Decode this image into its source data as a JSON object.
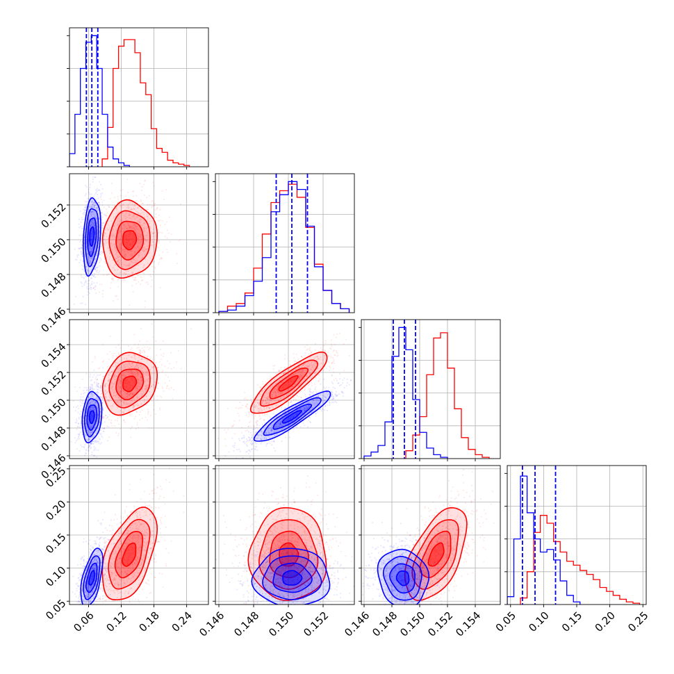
{
  "chart_data": {
    "type": "corner",
    "grid": true,
    "legend": "none",
    "colors": {
      "series_a": "#0000ff",
      "series_b": "#ff0000",
      "grid": "#b0b0b0",
      "frame": "#000000"
    },
    "axes": [
      {
        "range": [
          0.025,
          0.28
        ],
        "ticks": [
          0.06,
          0.12,
          0.18,
          0.24
        ],
        "tick_labels": [
          "0.06",
          "0.12",
          "0.18",
          "0.24"
        ],
        "quantiles_a": [
          0.056,
          0.066,
          0.077
        ]
      },
      {
        "range": [
          0.1458,
          0.1538
        ],
        "ticks": [
          0.146,
          0.148,
          0.15,
          0.152
        ],
        "tick_labels": [
          "0.146",
          "0.148",
          "0.150",
          "0.152"
        ],
        "quantiles_a": [
          0.1493,
          0.1502,
          0.1511
        ]
      },
      {
        "range": [
          0.1458,
          0.1558
        ],
        "ticks": [
          0.146,
          0.148,
          0.15,
          0.152,
          0.154
        ],
        "tick_labels": [
          "0.146",
          "0.148",
          "0.150",
          "0.152",
          "0.154"
        ],
        "quantiles_a": [
          0.1481,
          0.1489,
          0.1497
        ]
      },
      {
        "range": [
          0.045,
          0.255
        ],
        "ticks": [
          0.05,
          0.1,
          0.15,
          0.2,
          0.25
        ],
        "tick_labels": [
          "0.05",
          "0.10",
          "0.15",
          "0.20",
          "0.25"
        ],
        "quantiles_a": [
          0.068,
          0.087,
          0.118
        ]
      }
    ],
    "marginals": [
      {
        "a": [
          [
            0.025,
            0.035,
            0.1
          ],
          [
            0.035,
            0.045,
            0.4
          ],
          [
            0.045,
            0.055,
            0.75
          ],
          [
            0.055,
            0.065,
            0.95
          ],
          [
            0.065,
            0.075,
            1.0
          ],
          [
            0.075,
            0.085,
            0.75
          ],
          [
            0.085,
            0.095,
            0.4
          ],
          [
            0.095,
            0.105,
            0.15
          ],
          [
            0.105,
            0.115,
            0.06
          ],
          [
            0.115,
            0.125,
            0.03
          ],
          [
            0.125,
            0.135,
            0.01
          ]
        ],
        "b": [
          [
            0.085,
            0.095,
            0.06
          ],
          [
            0.095,
            0.105,
            0.3
          ],
          [
            0.105,
            0.115,
            0.75
          ],
          [
            0.115,
            0.125,
            0.92
          ],
          [
            0.125,
            0.135,
            0.97
          ],
          [
            0.135,
            0.145,
            0.97
          ],
          [
            0.145,
            0.155,
            0.87
          ],
          [
            0.155,
            0.165,
            0.64
          ],
          [
            0.165,
            0.175,
            0.55
          ],
          [
            0.175,
            0.185,
            0.29
          ],
          [
            0.185,
            0.195,
            0.14
          ],
          [
            0.195,
            0.205,
            0.11
          ],
          [
            0.205,
            0.215,
            0.05
          ],
          [
            0.215,
            0.225,
            0.03
          ],
          [
            0.225,
            0.235,
            0.02
          ],
          [
            0.235,
            0.245,
            0.01
          ]
        ]
      },
      {
        "a": [
          [
            0.146,
            0.1465,
            0.01
          ],
          [
            0.1465,
            0.147,
            0.02
          ],
          [
            0.147,
            0.1475,
            0.05
          ],
          [
            0.1475,
            0.148,
            0.13
          ],
          [
            0.148,
            0.1485,
            0.24
          ],
          [
            0.1485,
            0.149,
            0.42
          ],
          [
            0.149,
            0.1495,
            0.77
          ],
          [
            0.1495,
            0.15,
            0.9
          ],
          [
            0.15,
            0.1505,
            1.0
          ],
          [
            0.1505,
            0.151,
            0.94
          ],
          [
            0.151,
            0.1515,
            0.66
          ],
          [
            0.1515,
            0.152,
            0.35
          ],
          [
            0.152,
            0.1525,
            0.17
          ],
          [
            0.1525,
            0.153,
            0.07
          ],
          [
            0.153,
            0.1535,
            0.03
          ]
        ],
        "b": [
          [
            0.146,
            0.1465,
            0.01
          ],
          [
            0.1465,
            0.147,
            0.05
          ],
          [
            0.147,
            0.1475,
            0.07
          ],
          [
            0.1475,
            0.148,
            0.15
          ],
          [
            0.148,
            0.1485,
            0.34
          ],
          [
            0.1485,
            0.149,
            0.6
          ],
          [
            0.149,
            0.1495,
            0.84
          ],
          [
            0.1495,
            0.15,
            0.93
          ],
          [
            0.15,
            0.1505,
            0.98
          ],
          [
            0.1505,
            0.151,
            0.88
          ],
          [
            0.151,
            0.1515,
            0.65
          ],
          [
            0.1515,
            0.152,
            0.37
          ],
          [
            0.152,
            0.1525,
            0.17
          ],
          [
            0.1525,
            0.153,
            0.07
          ],
          [
            0.153,
            0.1535,
            0.03
          ]
        ]
      },
      {
        "a": [
          [
            0.146,
            0.1465,
            0.02
          ],
          [
            0.1465,
            0.147,
            0.05
          ],
          [
            0.147,
            0.1475,
            0.1
          ],
          [
            0.1475,
            0.148,
            0.28
          ],
          [
            0.148,
            0.1485,
            0.78
          ],
          [
            0.1485,
            0.149,
            1.0
          ],
          [
            0.149,
            0.1495,
            0.83
          ],
          [
            0.1495,
            0.15,
            0.45
          ],
          [
            0.15,
            0.1505,
            0.2
          ],
          [
            0.1505,
            0.151,
            0.08
          ],
          [
            0.151,
            0.1515,
            0.03
          ],
          [
            0.1515,
            0.152,
            0.01
          ]
        ],
        "b": [
          [
            0.149,
            0.1495,
            0.06
          ],
          [
            0.1495,
            0.15,
            0.18
          ],
          [
            0.15,
            0.1505,
            0.32
          ],
          [
            0.1505,
            0.151,
            0.64
          ],
          [
            0.151,
            0.1515,
            0.92
          ],
          [
            0.1515,
            0.152,
            0.96
          ],
          [
            0.152,
            0.1525,
            0.69
          ],
          [
            0.1525,
            0.153,
            0.38
          ],
          [
            0.153,
            0.1535,
            0.16
          ],
          [
            0.1535,
            0.154,
            0.07
          ],
          [
            0.154,
            0.1545,
            0.03
          ],
          [
            0.1545,
            0.155,
            0.01
          ]
        ]
      },
      {
        "a": [
          [
            0.045,
            0.055,
            0.06
          ],
          [
            0.055,
            0.065,
            0.5
          ],
          [
            0.065,
            0.075,
            0.98
          ],
          [
            0.075,
            0.085,
            0.7
          ],
          [
            0.085,
            0.095,
            0.5
          ],
          [
            0.095,
            0.105,
            0.4
          ],
          [
            0.105,
            0.115,
            0.42
          ],
          [
            0.115,
            0.125,
            0.34
          ],
          [
            0.125,
            0.135,
            0.18
          ],
          [
            0.135,
            0.145,
            0.07
          ],
          [
            0.145,
            0.155,
            0.02
          ]
        ],
        "b": [
          [
            0.065,
            0.075,
            0.05
          ],
          [
            0.075,
            0.085,
            0.25
          ],
          [
            0.085,
            0.095,
            0.55
          ],
          [
            0.095,
            0.105,
            0.68
          ],
          [
            0.105,
            0.115,
            0.62
          ],
          [
            0.115,
            0.125,
            0.48
          ],
          [
            0.125,
            0.135,
            0.4
          ],
          [
            0.135,
            0.145,
            0.33
          ],
          [
            0.145,
            0.155,
            0.3
          ],
          [
            0.155,
            0.165,
            0.26
          ],
          [
            0.165,
            0.175,
            0.23
          ],
          [
            0.175,
            0.185,
            0.19
          ],
          [
            0.185,
            0.195,
            0.13
          ],
          [
            0.195,
            0.205,
            0.1
          ],
          [
            0.205,
            0.215,
            0.07
          ],
          [
            0.215,
            0.225,
            0.04
          ],
          [
            0.225,
            0.235,
            0.02
          ],
          [
            0.235,
            0.245,
            0.01
          ]
        ]
      }
    ],
    "pairs": [
      {
        "x": 0,
        "y": 1,
        "a": {
          "mean": [
            0.066,
            0.1502
          ],
          "sd": [
            0.008,
            0.0011
          ],
          "corr": 0.25
        },
        "b": {
          "mean": [
            0.135,
            0.15
          ],
          "sd": [
            0.025,
            0.0011
          ],
          "corr": 0.05
        }
      },
      {
        "x": 0,
        "y": 2,
        "a": {
          "mean": [
            0.066,
            0.1488
          ],
          "sd": [
            0.009,
            0.0009
          ],
          "corr": 0.2
        },
        "b": {
          "mean": [
            0.135,
            0.1512
          ],
          "sd": [
            0.025,
            0.0011
          ],
          "corr": 0.2
        }
      },
      {
        "x": 1,
        "y": 2,
        "a": {
          "mean": [
            0.1502,
            0.1488
          ],
          "sd": [
            0.0011,
            0.0009
          ],
          "corr": 0.9
        },
        "b": {
          "mean": [
            0.15,
            0.1512
          ],
          "sd": [
            0.0011,
            0.0011
          ],
          "corr": 0.85
        }
      },
      {
        "x": 0,
        "y": 3,
        "a": {
          "mean": [
            0.066,
            0.085
          ],
          "sd": [
            0.01,
            0.022
          ],
          "corr": 0.55
        },
        "b": {
          "mean": [
            0.135,
            0.12
          ],
          "sd": [
            0.025,
            0.035
          ],
          "corr": 0.5
        }
      },
      {
        "x": 1,
        "y": 3,
        "a": {
          "mean": [
            0.1502,
            0.085
          ],
          "sd": [
            0.0011,
            0.022
          ],
          "corr": 0.0
        },
        "b": {
          "mean": [
            0.15,
            0.12
          ],
          "sd": [
            0.0011,
            0.035
          ],
          "corr": 0.0
        }
      },
      {
        "x": 2,
        "y": 3,
        "a": {
          "mean": [
            0.1488,
            0.085
          ],
          "sd": [
            0.0009,
            0.022
          ],
          "corr": -0.1
        },
        "b": {
          "mean": [
            0.1512,
            0.12
          ],
          "sd": [
            0.0011,
            0.035
          ],
          "corr": 0.55
        }
      }
    ]
  }
}
